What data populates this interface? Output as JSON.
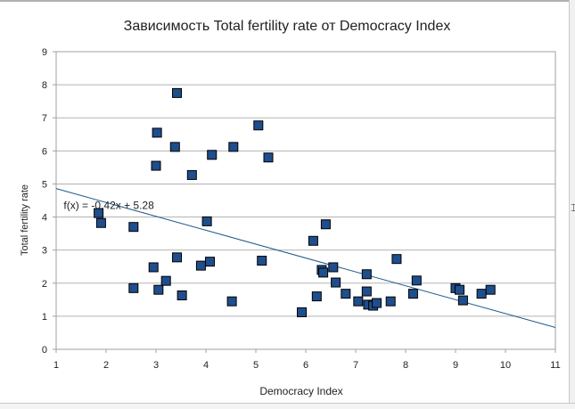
{
  "chart_data": {
    "type": "scatter",
    "title": "Зависимость Total fertility rate от Democracy Index",
    "xlabel": "Democracy Index",
    "ylabel": "Total fertility rate",
    "xlim": [
      1,
      11
    ],
    "ylim": [
      0,
      9
    ],
    "xticks": [
      1,
      2,
      3,
      4,
      5,
      6,
      7,
      8,
      9,
      10,
      11
    ],
    "yticks": [
      0,
      1,
      2,
      3,
      4,
      5,
      6,
      7,
      8,
      9
    ],
    "grid": "horizontal",
    "legend": "none",
    "marker_color": "#1f4e8c",
    "trendline_color": "#1f5a8a",
    "trendline": {
      "label": "f(x) = -0.42x + 5.28",
      "slope": -0.42,
      "intercept": 5.28
    },
    "points": [
      {
        "x": 1.85,
        "y": 4.12
      },
      {
        "x": 1.9,
        "y": 3.82
      },
      {
        "x": 2.55,
        "y": 3.7
      },
      {
        "x": 2.55,
        "y": 1.85
      },
      {
        "x": 2.95,
        "y": 2.48
      },
      {
        "x": 3.0,
        "y": 5.55
      },
      {
        "x": 3.02,
        "y": 6.55
      },
      {
        "x": 3.05,
        "y": 1.8
      },
      {
        "x": 3.2,
        "y": 2.07
      },
      {
        "x": 3.38,
        "y": 6.12
      },
      {
        "x": 3.42,
        "y": 7.75
      },
      {
        "x": 3.42,
        "y": 2.78
      },
      {
        "x": 3.52,
        "y": 1.63
      },
      {
        "x": 3.72,
        "y": 5.27
      },
      {
        "x": 3.9,
        "y": 2.53
      },
      {
        "x": 4.02,
        "y": 3.87
      },
      {
        "x": 4.08,
        "y": 2.65
      },
      {
        "x": 4.12,
        "y": 5.88
      },
      {
        "x": 4.52,
        "y": 1.45
      },
      {
        "x": 4.55,
        "y": 6.12
      },
      {
        "x": 5.05,
        "y": 6.77
      },
      {
        "x": 5.12,
        "y": 2.68
      },
      {
        "x": 5.25,
        "y": 5.8
      },
      {
        "x": 5.92,
        "y": 1.12
      },
      {
        "x": 6.15,
        "y": 3.28
      },
      {
        "x": 6.22,
        "y": 1.6
      },
      {
        "x": 6.32,
        "y": 2.4
      },
      {
        "x": 6.35,
        "y": 2.32
      },
      {
        "x": 6.4,
        "y": 3.78
      },
      {
        "x": 6.55,
        "y": 2.48
      },
      {
        "x": 6.6,
        "y": 2.02
      },
      {
        "x": 6.8,
        "y": 1.68
      },
      {
        "x": 7.05,
        "y": 1.45
      },
      {
        "x": 7.22,
        "y": 1.75
      },
      {
        "x": 7.22,
        "y": 2.27
      },
      {
        "x": 7.25,
        "y": 1.35
      },
      {
        "x": 7.35,
        "y": 1.32
      },
      {
        "x": 7.42,
        "y": 1.4
      },
      {
        "x": 7.7,
        "y": 1.45
      },
      {
        "x": 7.82,
        "y": 2.73
      },
      {
        "x": 8.15,
        "y": 1.68
      },
      {
        "x": 8.22,
        "y": 2.08
      },
      {
        "x": 9.0,
        "y": 1.85
      },
      {
        "x": 9.08,
        "y": 1.8
      },
      {
        "x": 9.15,
        "y": 1.48
      },
      {
        "x": 9.52,
        "y": 1.68
      },
      {
        "x": 9.7,
        "y": 1.8
      }
    ]
  }
}
